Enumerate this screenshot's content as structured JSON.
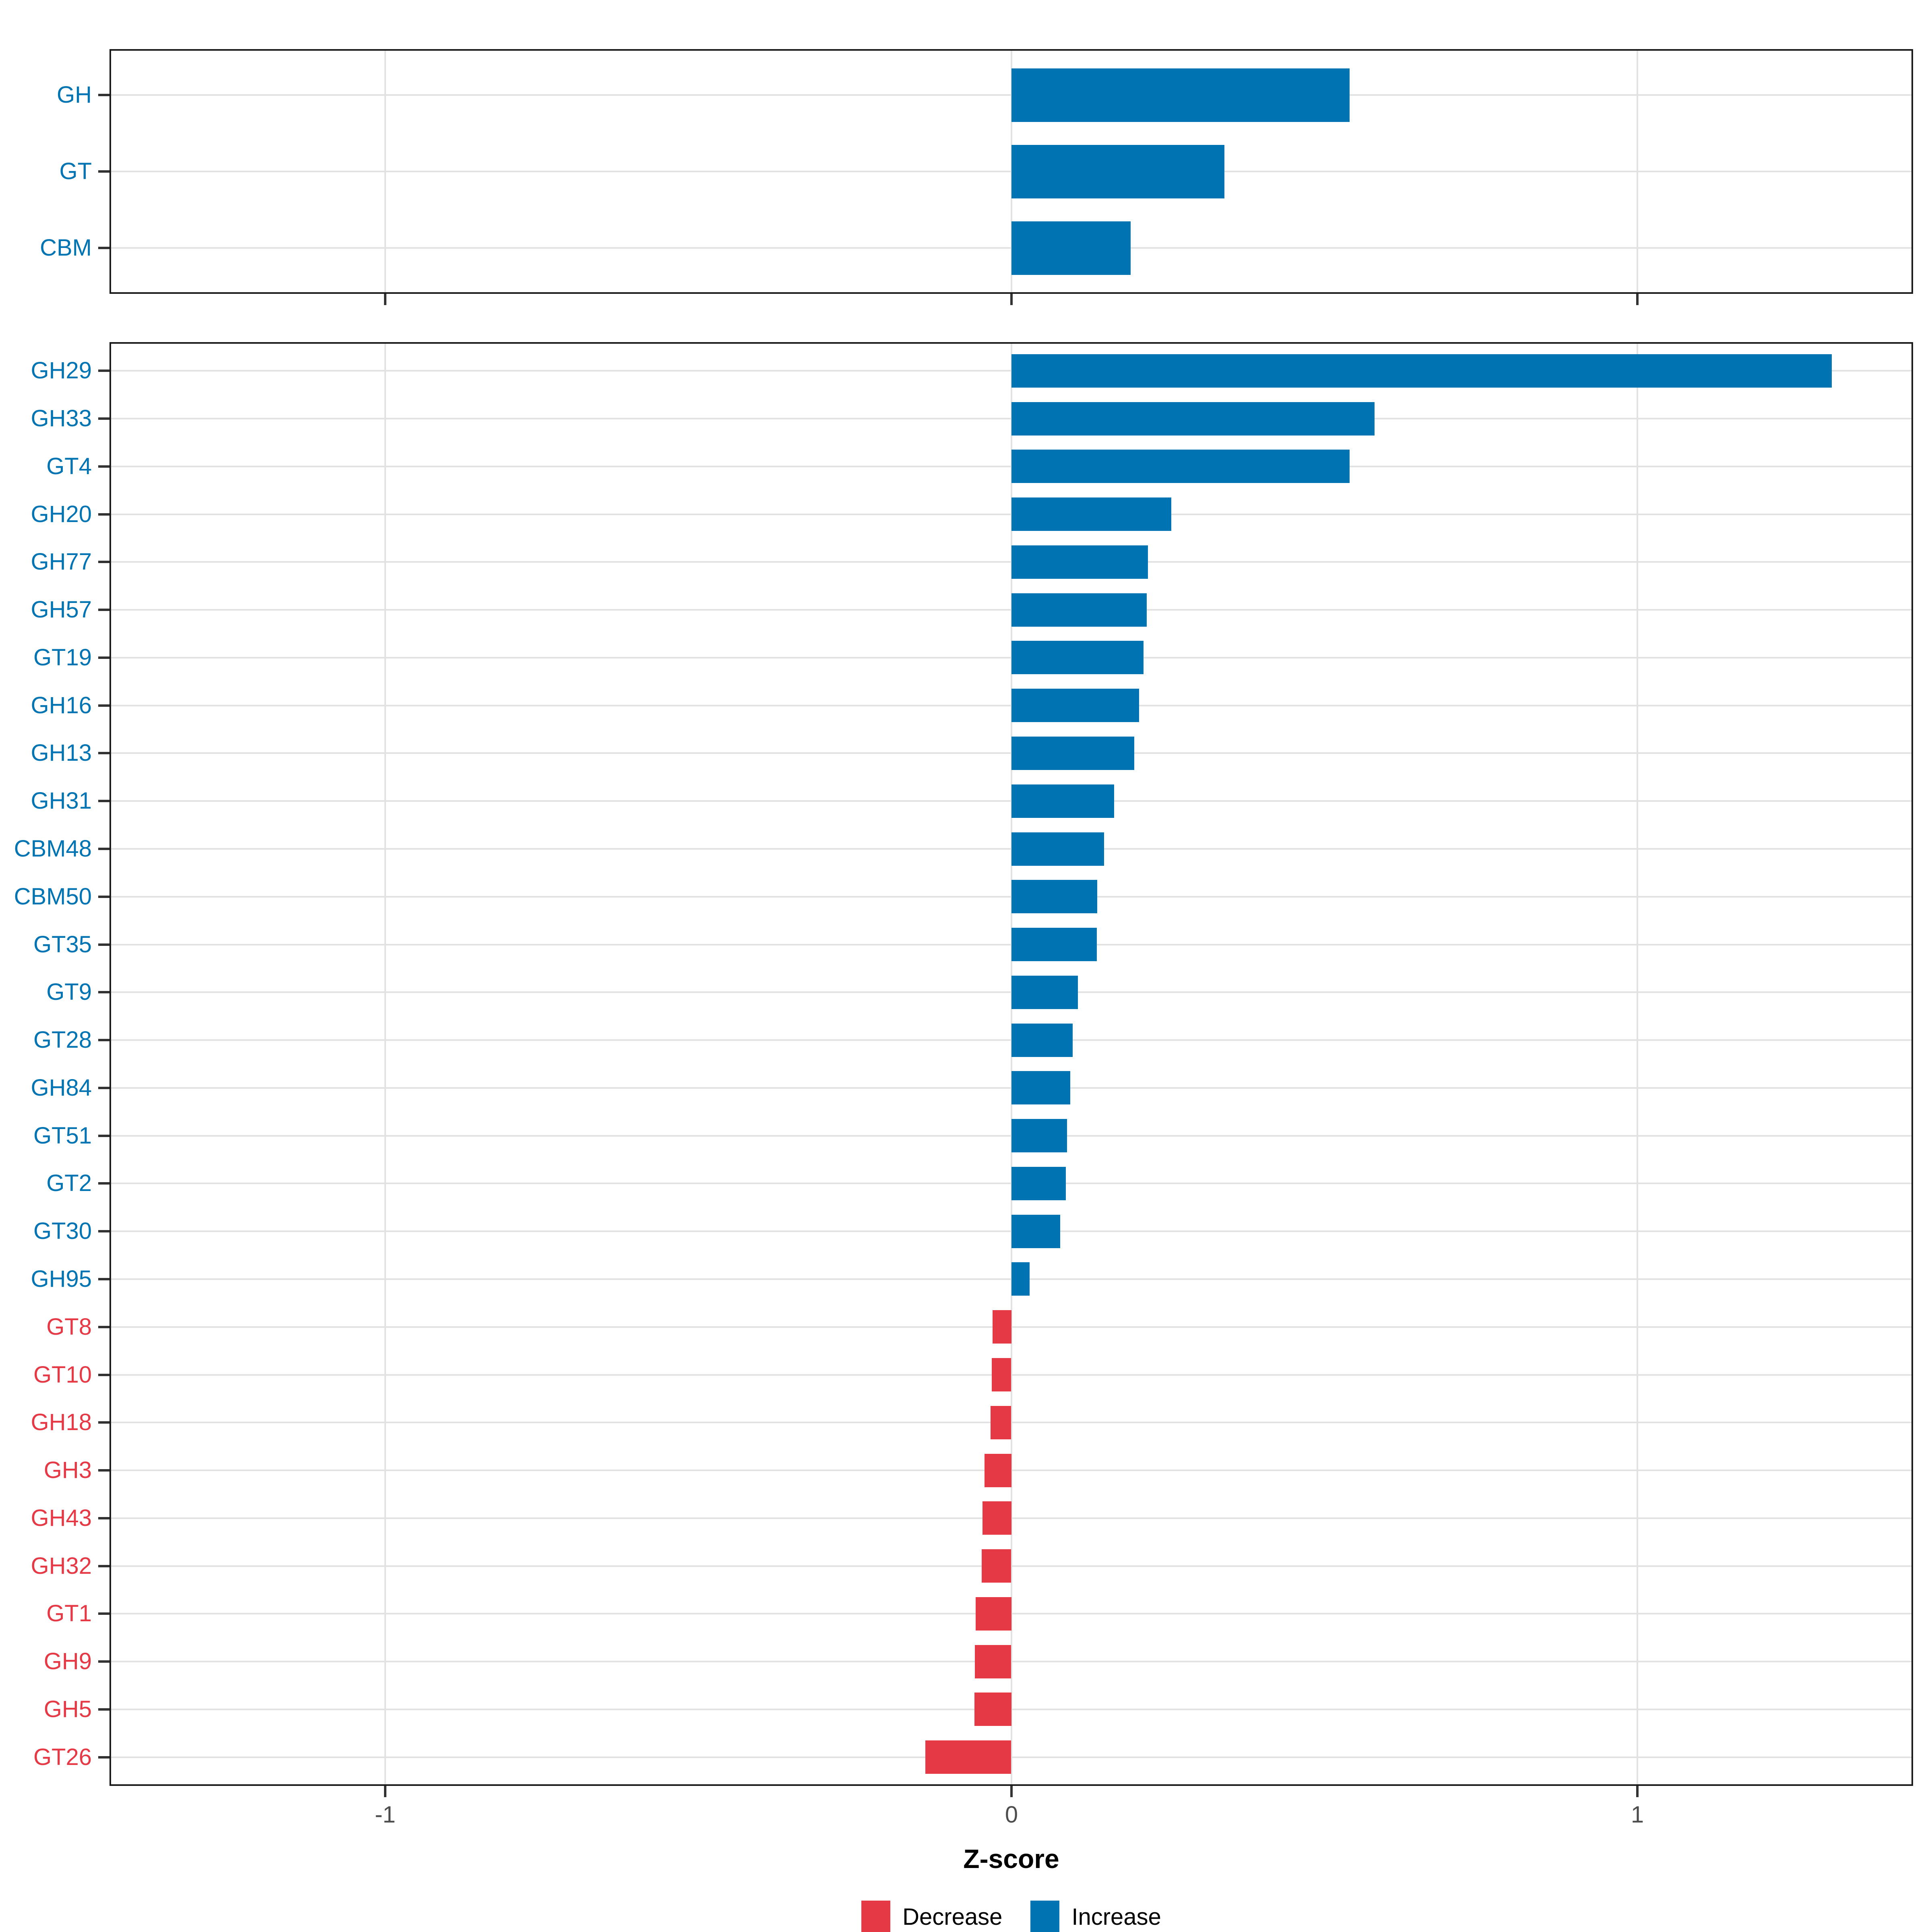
{
  "figure": {
    "xlabel": "Z-score"
  },
  "axis": {
    "x_ticks": [
      {
        "label": "-1",
        "value": -1
      },
      {
        "label": "0",
        "value": 0
      },
      {
        "label": "1",
        "value": 1
      }
    ]
  },
  "legend": {
    "position": "bottom",
    "items": [
      {
        "label": "Decrease",
        "key": "decrease"
      },
      {
        "label": "Increase",
        "key": "increase"
      }
    ]
  },
  "colors": {
    "increase": "#0074B2",
    "decrease": "#E63946",
    "grid": "#E2E2E2",
    "panel_border": "#1A1A1A",
    "tick": "#333333",
    "tick_label": "#4D4D4D",
    "background": "#FFFFFF"
  },
  "chart_data": [
    {
      "type": "bar",
      "orientation": "horizontal",
      "panel": "cazyme-classes",
      "title": "",
      "xlabel": "Z-score",
      "grid": true,
      "xlim": [
        -1.44,
        1.44
      ],
      "x_tick_values": [
        -1,
        0,
        1
      ],
      "categories": [
        "GH",
        "GT",
        "CBM"
      ],
      "values": [
        0.54,
        0.34,
        0.19
      ],
      "directions": [
        "increase",
        "increase",
        "increase"
      ]
    },
    {
      "type": "bar",
      "orientation": "horizontal",
      "panel": "cazyme-families",
      "title": "",
      "xlabel": "Z-score",
      "grid": true,
      "xlim": [
        -1.44,
        1.44
      ],
      "x_tick_values": [
        -1,
        0,
        1
      ],
      "categories": [
        "GH29",
        "GH33",
        "GT4",
        "GH20",
        "GH77",
        "GH57",
        "GT19",
        "GH16",
        "GH13",
        "GH31",
        "CBM48",
        "CBM50",
        "GT35",
        "GT9",
        "GT28",
        "GH84",
        "GT51",
        "GT2",
        "GT30",
        "GH95",
        "GT8",
        "GT10",
        "GH18",
        "GH3",
        "GH43",
        "GH32",
        "GT1",
        "GH9",
        "GH5",
        "GT26"
      ],
      "values": [
        1.31,
        0.58,
        0.54,
        0.255,
        0.218,
        0.216,
        0.211,
        0.204,
        0.196,
        0.164,
        0.148,
        0.137,
        0.136,
        0.106,
        0.098,
        0.094,
        0.089,
        0.087,
        0.078,
        0.029,
        -0.03,
        -0.031,
        -0.033,
        -0.043,
        -0.046,
        -0.047,
        -0.057,
        -0.058,
        -0.059,
        -0.137
      ],
      "directions": [
        "increase",
        "increase",
        "increase",
        "increase",
        "increase",
        "increase",
        "increase",
        "increase",
        "increase",
        "increase",
        "increase",
        "increase",
        "increase",
        "increase",
        "increase",
        "increase",
        "increase",
        "increase",
        "increase",
        "increase",
        "decrease",
        "decrease",
        "decrease",
        "decrease",
        "decrease",
        "decrease",
        "decrease",
        "decrease",
        "decrease",
        "decrease"
      ]
    }
  ]
}
